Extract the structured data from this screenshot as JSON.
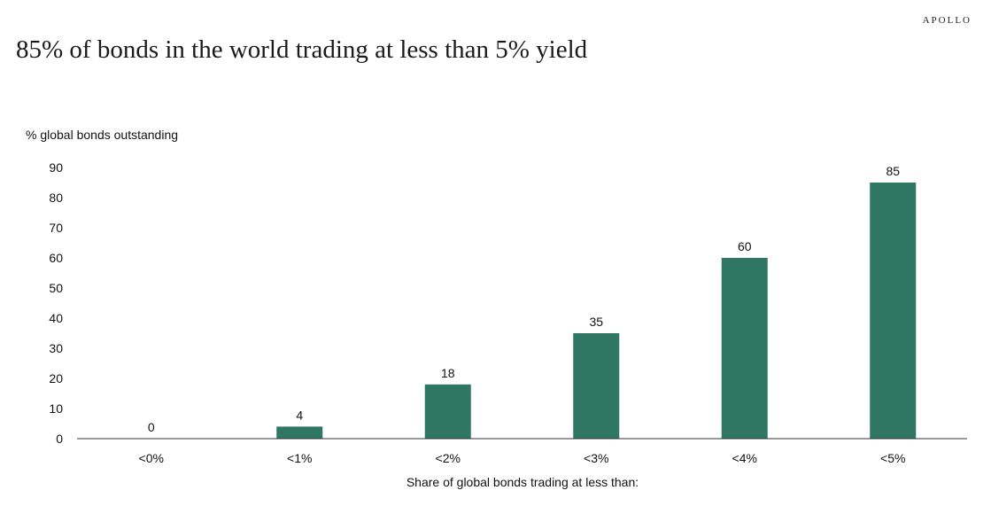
{
  "brand": "APOLLO",
  "colors": {
    "bar": "#2f7762",
    "axis": "#333333",
    "text": "#111111"
  },
  "chart_data": {
    "type": "bar",
    "title": "85% of bonds in the world trading at less than 5% yield",
    "ylabel": "% global bonds outstanding",
    "xlabel": "Share of global bonds trading at less than:",
    "categories": [
      "<0%",
      "<1%",
      "<2%",
      "<3%",
      "<4%",
      "<5%"
    ],
    "values": [
      0,
      4,
      18,
      35,
      60,
      85
    ],
    "data_labels": [
      "0",
      "4",
      "18",
      "35",
      "60",
      "85"
    ],
    "ylim": [
      0,
      90
    ],
    "yticks": [
      0,
      10,
      20,
      30,
      40,
      50,
      60,
      70,
      80,
      90
    ],
    "grid": false,
    "legend": "none"
  }
}
